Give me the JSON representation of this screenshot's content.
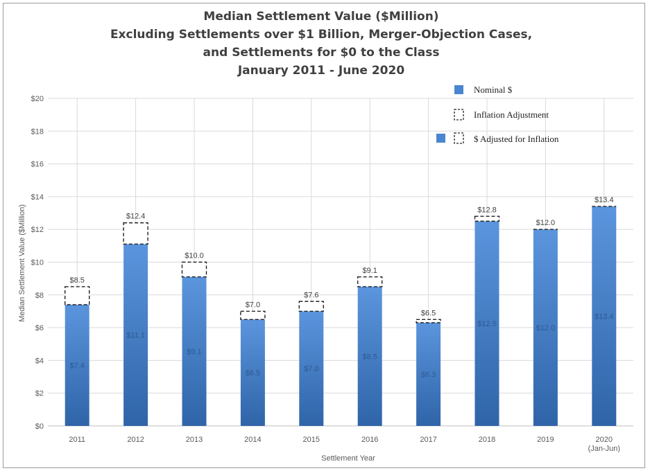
{
  "chart_data": {
    "type": "bar",
    "title_lines": [
      "Median Settlement Value ($Million)",
      "Excluding Settlements over $1 Billion, Merger-Objection Cases,",
      "and Settlements for $0 to the Class",
      "January 2011 - June 2020"
    ],
    "xlabel": "Settlement Year",
    "ylabel": "Median Settlement Value ($Million)",
    "ylim": [
      0,
      20
    ],
    "yticks": [
      "$0",
      "$2",
      "$4",
      "$6",
      "$8",
      "$10",
      "$12",
      "$14",
      "$16",
      "$18",
      "$20"
    ],
    "ytick_values": [
      0,
      2,
      4,
      6,
      8,
      10,
      12,
      14,
      16,
      18,
      20
    ],
    "categories": [
      "2011",
      "2012",
      "2013",
      "2014",
      "2015",
      "2016",
      "2017",
      "2018",
      "2019",
      "2020"
    ],
    "category_sublabels": [
      "",
      "",
      "",
      "",
      "",
      "",
      "",
      "",
      "",
      "(Jan-Jun)"
    ],
    "series": [
      {
        "name": "Nominal $",
        "values": [
          7.4,
          11.1,
          9.1,
          6.5,
          7.0,
          8.5,
          6.3,
          12.5,
          12.0,
          13.4
        ],
        "labels": [
          "$7.4",
          "$11.1",
          "$9.1",
          "$6.5",
          "$7.0",
          "$8.5",
          "$6.3",
          "$12.5",
          "$12.0",
          "$13.4"
        ],
        "color": "#4a86d0"
      },
      {
        "name": "$ Adjusted for Inflation",
        "values": [
          8.5,
          12.4,
          10.0,
          7.0,
          7.6,
          9.1,
          6.5,
          12.8,
          12.0,
          13.4
        ],
        "labels": [
          "$8.5",
          "$12.4",
          "$10.0",
          "$7.0",
          "$7.6",
          "$9.1",
          "$6.5",
          "$12.8",
          "$12.0",
          "$13.4"
        ]
      }
    ],
    "legend": {
      "position": "top-right",
      "items": [
        {
          "label": "Nominal $",
          "symbol": "filled-square"
        },
        {
          "label": "Inflation Adjustment",
          "symbol": "dashed-square"
        },
        {
          "label": "$ Adjusted for Inflation",
          "symbol": "filled-and-dashed-square"
        }
      ]
    },
    "grid": true,
    "colors": {
      "bar_top": "#5b95dd",
      "bar_bottom": "#2f64a8",
      "grid": "#d9d9d9",
      "axis": "#bfbfbf",
      "dash": "#222222"
    }
  }
}
